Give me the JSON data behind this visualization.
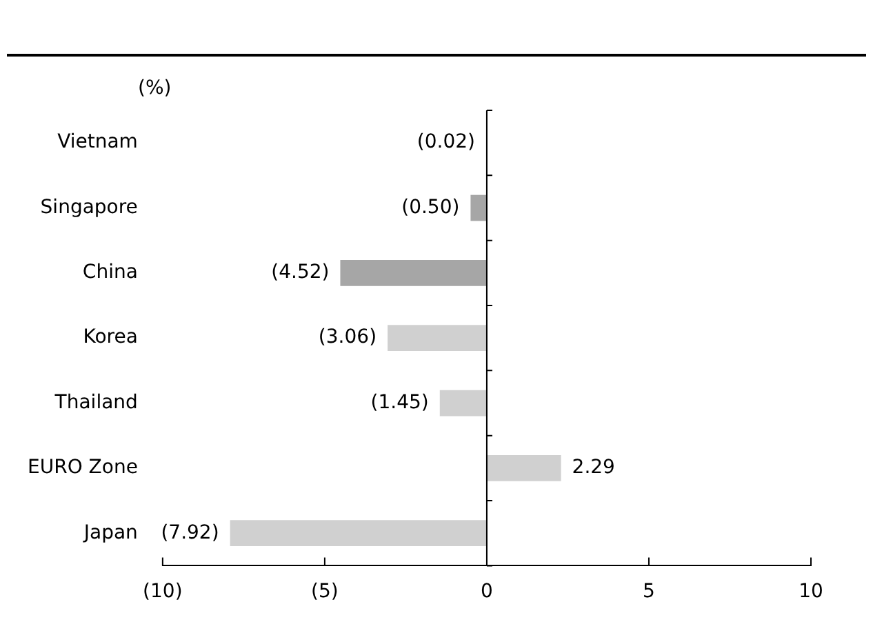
{
  "chart_data": {
    "type": "bar",
    "orientation": "horizontal",
    "ylabel": "(%)",
    "categories": [
      "Vietnam",
      "Singapore",
      "China",
      "Korea",
      "Thailand",
      "EURO Zone",
      "Japan"
    ],
    "values": [
      -0.02,
      -0.5,
      -4.52,
      -3.06,
      -1.45,
      2.29,
      -7.92
    ],
    "colors": [
      "#a6a6a6",
      "#a6a6a6",
      "#a6a6a6",
      "#d0d0d0",
      "#d0d0d0",
      "#d0d0d0",
      "#d0d0d0"
    ],
    "value_labels": [
      "(0.02)",
      "(0.50)",
      "(4.52)",
      "(3.06)",
      "(1.45)",
      "2.29",
      "(7.92)"
    ],
    "xlim": [
      -10,
      10
    ],
    "xticks": [
      {
        "value": -10,
        "label": "(10)"
      },
      {
        "value": -5,
        "label": "(5)"
      },
      0,
      5,
      10
    ],
    "legend": false
  }
}
